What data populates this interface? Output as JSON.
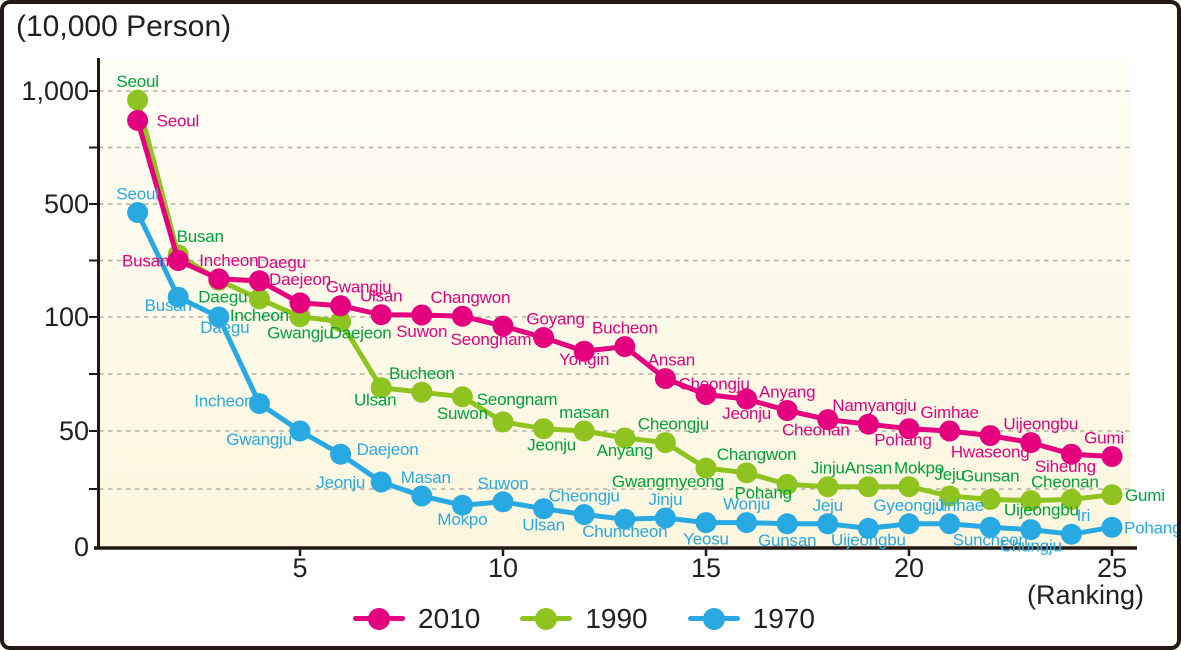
{
  "title": "(10,000 Person)",
  "x_axis": {
    "unit_label": "(Ranking)",
    "ticks": [
      5,
      10,
      15,
      20,
      25
    ],
    "range": [
      1,
      25
    ]
  },
  "y_axis": {
    "tick_labels": [
      "1,000",
      "500",
      "100",
      "50",
      "0"
    ],
    "tick_values": [
      1000,
      500,
      100,
      50,
      0
    ],
    "gridline_values": [
      25,
      50,
      75,
      100,
      300,
      500,
      750,
      1000
    ],
    "scale_note": "piecewise linear: 0-50-100-500-1000 at equal quarter intervals"
  },
  "legend": {
    "items": [
      {
        "label": "2010",
        "color": "#E4007F"
      },
      {
        "label": "1990",
        "color": "#8FC31F"
      },
      {
        "label": "1970",
        "color": "#29A9E1"
      }
    ]
  },
  "colors": {
    "series_2010": "#E4007F",
    "series_1990": "#8FC31F",
    "series_1990_label": "#00A23C",
    "series_1970": "#29A9E1",
    "plot_bg_top": "#FFFEF5",
    "plot_bg_bottom": "#FCF6DE",
    "gridline": "#B4B0A6",
    "axis": "#231815",
    "text": "#231F20"
  },
  "chart_data": {
    "type": "line",
    "title": "",
    "xlabel": "(Ranking)",
    "ylabel": "(10,000 Person)",
    "x_range": [
      1,
      25
    ],
    "grid": "dashed horizontal",
    "legend_position": "bottom center",
    "series": [
      {
        "name": "2010",
        "color": "#E4007F",
        "label_color": "#E4007F",
        "points": [
          {
            "rank": 1,
            "city": "Seoul",
            "value": 870,
            "lp": "r",
            "dx": 3
          },
          {
            "rank": 2,
            "city": "Busan",
            "value": 300,
            "lp": "l",
            "dx": 7
          },
          {
            "rank": 3,
            "city": "Incheon",
            "value": 235,
            "lp": "a",
            "dx": 10
          },
          {
            "rank": 4,
            "city": "Daegu",
            "value": 228,
            "lp": "a",
            "dx": 22
          },
          {
            "rank": 5,
            "city": "Daejeon",
            "value": 150,
            "lp": "a",
            "dy": -5
          },
          {
            "rank": 6,
            "city": "Gwangju",
            "value": 140,
            "lp": "a",
            "dx": 18
          },
          {
            "rank": 7,
            "city": "Ulsan",
            "value": 108,
            "lp": "a"
          },
          {
            "rank": 8,
            "city": "Suwon",
            "value": 107,
            "lp": "b"
          },
          {
            "rank": 9,
            "city": "Changwon",
            "value": 103,
            "lp": "a",
            "dx": 8
          },
          {
            "rank": 10,
            "city": "Seongnam",
            "value": 96,
            "lp": "b",
            "dx": -12,
            "dy": -3
          },
          {
            "rank": 11,
            "city": "Goyang",
            "value": 91,
            "lp": "a",
            "dx": 12
          },
          {
            "rank": 12,
            "city": "Yongin",
            "value": 85,
            "lp": "b",
            "dy": -8
          },
          {
            "rank": 13,
            "city": "Bucheon",
            "value": 87,
            "lp": "a"
          },
          {
            "rank": 14,
            "city": "Ansan",
            "value": 73,
            "lp": "a",
            "dx": 6
          },
          {
            "rank": 15,
            "city": "Cheongju",
            "value": 66,
            "lp": "a",
            "dx": 8,
            "dy": 8
          },
          {
            "rank": 16,
            "city": "Jeonju",
            "value": 64,
            "lp": "b",
            "dy": -2
          },
          {
            "rank": 17,
            "city": "Anyang",
            "value": 59,
            "lp": "a"
          },
          {
            "rank": 18,
            "city": "Cheonan",
            "value": 55,
            "lp": "b",
            "dx": -12,
            "dy": -6
          },
          {
            "rank": 19,
            "city": "Namyangju",
            "value": 53,
            "lp": "a",
            "dx": 6
          },
          {
            "rank": 20,
            "city": "Pohang",
            "value": 51,
            "lp": "b",
            "dx": -6,
            "dy": -5
          },
          {
            "rank": 21,
            "city": "Gimhae",
            "value": 50,
            "lp": "a"
          },
          {
            "rank": 22,
            "city": "Hwaseong",
            "value": 48,
            "lp": "b"
          },
          {
            "rank": 23,
            "city": "Uijeongbu",
            "value": 45,
            "lp": "a",
            "dx": 10
          },
          {
            "rank": 24,
            "city": "Siheung",
            "value": 40,
            "lp": "b",
            "dx": -6,
            "dy": -4
          },
          {
            "rank": 25,
            "city": "Gumi",
            "value": 39,
            "lp": "a",
            "dx": -8
          }
        ]
      },
      {
        "name": "1990",
        "color": "#8FC31F",
        "label_color": "#00A23C",
        "points": [
          {
            "rank": 1,
            "city": "Seoul",
            "value": 960,
            "lp": "a"
          },
          {
            "rank": 2,
            "city": "Busan",
            "value": 320,
            "lp": "a",
            "dx": 22
          },
          {
            "rank": 3,
            "city": "Daegu",
            "value": 230,
            "lp": "b",
            "dx": 4
          },
          {
            "rank": 4,
            "city": "Incheon",
            "value": 164,
            "lp": "b"
          },
          {
            "rank": 5,
            "city": "Gwangju",
            "value": 101,
            "lp": "b"
          },
          {
            "rank": 6,
            "city": "Daejeon",
            "value": 98,
            "lp": "b",
            "dx": 20,
            "dy": -5
          },
          {
            "rank": 7,
            "city": "Ulsan",
            "value": 69,
            "lp": "b",
            "dx": -6,
            "dy": -4
          },
          {
            "rank": 8,
            "city": "Bucheon",
            "value": 67,
            "lp": "a"
          },
          {
            "rank": 9,
            "city": "Suwon",
            "value": 65,
            "lp": "b"
          },
          {
            "rank": 10,
            "city": "Seongnam",
            "value": 54,
            "lp": "a",
            "dx": 14,
            "dy": -4
          },
          {
            "rank": 11,
            "city": "Jeonju",
            "value": 51,
            "lp": "b",
            "dx": 8
          },
          {
            "rank": 12,
            "city": "masan",
            "value": 50,
            "lp": "a"
          },
          {
            "rank": 13,
            "city": "Anyang",
            "value": 47,
            "lp": "b",
            "dy": -4
          },
          {
            "rank": 14,
            "city": "Cheongju",
            "value": 45,
            "lp": "a",
            "dx": 8
          },
          {
            "rank": 15,
            "city": "Gwangmyeong",
            "value": 34,
            "lp": "b",
            "dx": -38,
            "dy": -3
          },
          {
            "rank": 16,
            "city": "Changwon",
            "value": 32,
            "lp": "a",
            "dx": 10
          },
          {
            "rank": 17,
            "city": "Pohang",
            "value": 27,
            "lp": "b",
            "dx": -24,
            "dy": -8
          },
          {
            "rank": 18,
            "city": "Jinju",
            "value": 26,
            "lp": "a"
          },
          {
            "rank": 19,
            "city": "Ansan",
            "value": 26,
            "lp": "a"
          },
          {
            "rank": 20,
            "city": "Mokpo",
            "value": 26,
            "lp": "a",
            "dx": 10
          },
          {
            "rank": 21,
            "city": "Jeju",
            "value": 22,
            "lp": "a",
            "dy": -3
          },
          {
            "rank": 22,
            "city": "Gunsan",
            "value": 20.5,
            "lp": "a",
            "dy": -5
          },
          {
            "rank": 23,
            "city": "Cheonan",
            "value": 20,
            "lp": "a",
            "dx": 34
          },
          {
            "rank": 24,
            "city": "Uijeongbu",
            "value": 20.5,
            "lp": "b",
            "dx": -30,
            "dy": -6
          },
          {
            "rank": 25,
            "city": "Gumi",
            "value": 22.5,
            "lp": "r",
            "dx": -3
          }
        ]
      },
      {
        "name": "1970",
        "color": "#29A9E1",
        "label_color": "#29A9E1",
        "points": [
          {
            "rank": 1,
            "city": "Seoul",
            "value": 470,
            "lp": "a"
          },
          {
            "rank": 2,
            "city": "Busan",
            "value": 170,
            "lp": "b",
            "dx": -10,
            "dy": -8
          },
          {
            "rank": 3,
            "city": "Daegu",
            "value": 100,
            "lp": "b",
            "dx": 6,
            "dy": -6
          },
          {
            "rank": 4,
            "city": "Incheon",
            "value": 62,
            "lp": "l",
            "dx": 10,
            "dy": -3
          },
          {
            "rank": 5,
            "city": "Gwangju",
            "value": 50,
            "lp": "l",
            "dx": 8,
            "dy": 8
          },
          {
            "rank": 6,
            "city": "Daejeon",
            "value": 40,
            "lp": "r",
            "dy": -5
          },
          {
            "rank": 7,
            "city": "Jeonju",
            "value": 28,
            "lp": "l"
          },
          {
            "rank": 8,
            "city": "Masan",
            "value": 22,
            "lp": "a",
            "dx": 4
          },
          {
            "rank": 9,
            "city": "Mokpo",
            "value": 18,
            "lp": "b",
            "dy": -2
          },
          {
            "rank": 10,
            "city": "Suwon",
            "value": 19.5,
            "lp": "a"
          },
          {
            "rank": 11,
            "city": "Ulsan",
            "value": 16.5,
            "lp": "b"
          },
          {
            "rank": 12,
            "city": "Cheongju",
            "value": 14,
            "lp": "a"
          },
          {
            "rank": 13,
            "city": "Chuncheon",
            "value": 12,
            "lp": "b",
            "dy": -4
          },
          {
            "rank": 14,
            "city": "Jinju",
            "value": 12.5,
            "lp": "a"
          },
          {
            "rank": 15,
            "city": "Yeosu",
            "value": 10.5,
            "lp": "b"
          },
          {
            "rank": 16,
            "city": "Wonju",
            "value": 10.5,
            "lp": "a"
          },
          {
            "rank": 17,
            "city": "Gunsan",
            "value": 10,
            "lp": "b"
          },
          {
            "rank": 18,
            "city": "Jeju",
            "value": 10,
            "lp": "a"
          },
          {
            "rank": 19,
            "city": "Uijeongbu",
            "value": 8,
            "lp": "b",
            "dy": -5
          },
          {
            "rank": 20,
            "city": "Gyeongju",
            "value": 10,
            "lp": "a"
          },
          {
            "rank": 21,
            "city": "Jinhae",
            "value": 10,
            "lp": "a",
            "dx": 10
          },
          {
            "rank": 22,
            "city": "Suncheon",
            "value": 8.5,
            "lp": "b",
            "dy": -4
          },
          {
            "rank": 23,
            "city": "Chungju",
            "value": 7.5,
            "lp": "b"
          },
          {
            "rank": 24,
            "city": "Iri",
            "value": 5.5,
            "lp": "a",
            "dx": 12
          },
          {
            "rank": 25,
            "city": "Pohang",
            "value": 8.5,
            "lp": "r",
            "dx": -4
          }
        ]
      }
    ]
  }
}
